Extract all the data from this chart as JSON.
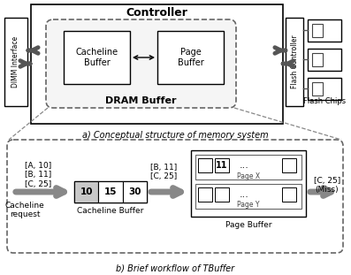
{
  "title_a": "a) Conceptual structure of memory system",
  "title_b": "b) Brief workflow of TBuffer",
  "controller_label": "Controller",
  "dram_buffer_label": "DRAM Buffer",
  "cacheline_buffer_label": "Cacheline\nBuffer",
  "page_buffer_label": "Page\nBuffer",
  "dimm_label": "DIMM Interface",
  "flash_controller_label": "Flash Controller",
  "flash_chips_label": "Flash Chips",
  "cache_request_label": "Cacheline\nrequest",
  "cacheline_buffer_label2": "Cacheline Buffer",
  "page_buffer_label2": "Page Buffer",
  "cache_entries": "[A, 10]\n[B, 11]\n[C, 25]",
  "cache_values": [
    "10",
    "15",
    "30"
  ],
  "page_x_label": "Page X",
  "page_y_label": "Page Y",
  "page_x_value": "11",
  "dots": "...",
  "miss_label": "[C, 25]\n(Miss)",
  "pb_arrow_label1": "[B, 11]\n[C, 25]",
  "bg_color": "#ffffff"
}
